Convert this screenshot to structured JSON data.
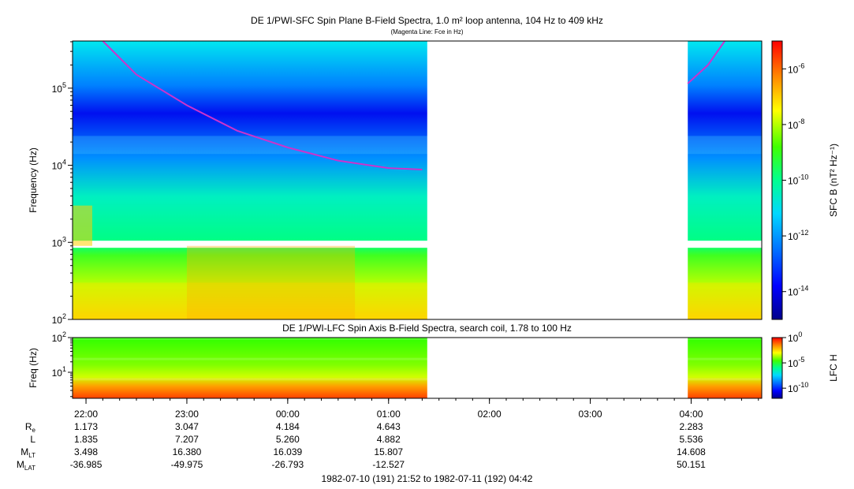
{
  "chart_data": [
    {
      "type": "heatmap",
      "title": "DE 1/PWI-SFC  Spin Plane B-Field Spectra, 1.0 m² loop antenna, 104 Hz to 409 kHz",
      "subtitle": "(Magenta Line: Fce in Hz)",
      "ylabel": "Frequency (Hz)",
      "yscale": "log",
      "ylim": [
        100,
        409000
      ],
      "yticks": [
        {
          "v": 100,
          "e": "2"
        },
        {
          "v": 1000,
          "e": "3"
        },
        {
          "v": 10000,
          "e": "4"
        },
        {
          "v": 100000,
          "e": "5"
        }
      ],
      "colorbar": {
        "label": "SFC B (nT² Hz⁻¹)",
        "scale": "log",
        "range": [
          1e-15,
          1e-05
        ],
        "ticks": [
          {
            "v": 1e-06,
            "e": "-6"
          },
          {
            "v": 1e-08,
            "e": "-8"
          },
          {
            "v": 1e-10,
            "e": "-10"
          },
          {
            "v": 1e-12,
            "e": "-12"
          },
          {
            "v": 1e-14,
            "e": "-14"
          }
        ]
      },
      "data_gaps": [
        [
          "01:23",
          "03:58"
        ]
      ],
      "fce_line": {
        "color": "#cc33cc",
        "segments": [
          [
            {
              "t": "22:10",
              "f": 409000
            },
            {
              "t": "22:30",
              "f": 150000
            },
            {
              "t": "23:00",
              "f": 60000
            },
            {
              "t": "23:30",
              "f": 28000
            },
            {
              "t": "00:00",
              "f": 17000
            },
            {
              "t": "00:30",
              "f": 11500
            },
            {
              "t": "01:00",
              "f": 9200
            },
            {
              "t": "01:20",
              "f": 8800
            }
          ],
          [
            {
              "t": "03:58",
              "f": 115000
            },
            {
              "t": "04:10",
              "f": 200000
            },
            {
              "t": "04:20",
              "f": 409000
            }
          ]
        ]
      }
    },
    {
      "type": "heatmap",
      "title": "DE 1/PWI-LFC  Spin Axis B-Field Spectra, search coil, 1.78 to 100 Hz",
      "ylabel": "Freq (Hz)",
      "yscale": "log",
      "ylim": [
        1.78,
        100
      ],
      "yticks": [
        {
          "v": 10,
          "e": "1"
        },
        {
          "v": 100,
          "e": "2"
        }
      ],
      "colorbar": {
        "label": "LFC H",
        "scale": "log",
        "range": [
          1e-12,
          1
        ],
        "ticks": [
          {
            "v": 1,
            "e": "0"
          },
          {
            "v": 1e-05,
            "e": "-5"
          },
          {
            "v": 1e-10,
            "e": "-10"
          }
        ]
      },
      "data_gaps": [
        [
          "01:23",
          "03:58"
        ]
      ]
    }
  ],
  "time_axis": {
    "start": "21:52",
    "end": "04:42",
    "ticks": [
      "22:00",
      "23:00",
      "00:00",
      "01:00",
      "02:00",
      "03:00",
      "04:00"
    ]
  },
  "ephemeris": {
    "labels": [
      {
        "main": "R",
        "sub": "e"
      },
      {
        "main": "L",
        "sub": ""
      },
      {
        "main": "M",
        "sub": "LT"
      },
      {
        "main": "M",
        "sub": "LAT"
      }
    ],
    "columns": [
      {
        "t": "22:00",
        "values": [
          "1.173",
          "1.835",
          "3.498",
          "-36.985"
        ]
      },
      {
        "t": "23:00",
        "values": [
          "3.047",
          "7.207",
          "16.380",
          "-49.975"
        ]
      },
      {
        "t": "00:00",
        "values": [
          "4.184",
          "5.260",
          "16.039",
          "-26.793"
        ]
      },
      {
        "t": "01:00",
        "values": [
          "4.643",
          "4.882",
          "15.807",
          "-12.527"
        ]
      },
      {
        "t": "04:00",
        "values": [
          "2.283",
          "5.536",
          "14.608",
          "50.151"
        ]
      }
    ]
  },
  "footer": "1982-07-10 (191) 21:52 to 1982-07-11 (192) 04:42",
  "colors": {
    "gap": "#ffffff",
    "fce": "#cc33cc"
  }
}
